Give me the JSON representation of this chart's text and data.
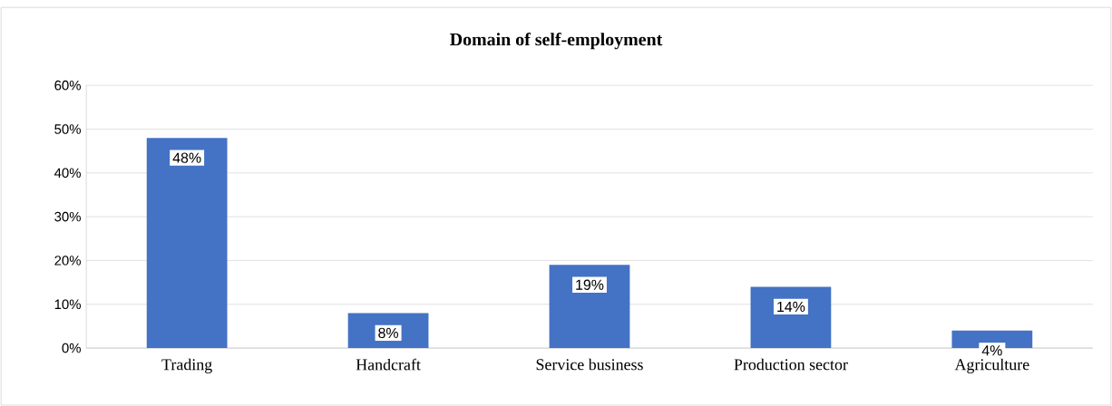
{
  "chart_data": {
    "type": "bar",
    "title": "Domain of self-employment",
    "categories": [
      "Trading",
      "Handcraft",
      "Service business",
      "Production sector",
      "Agriculture"
    ],
    "values": [
      48,
      8,
      19,
      14,
      4
    ],
    "value_labels": [
      "48%",
      "8%",
      "19%",
      "14%",
      "4%"
    ],
    "color": "#4472c4",
    "ylim": [
      0,
      60
    ],
    "yticks": [
      {
        "value": 0,
        "label": "0%"
      },
      {
        "value": 10,
        "label": "10%"
      },
      {
        "value": 20,
        "label": "20%"
      },
      {
        "value": 30,
        "label": "30%"
      },
      {
        "value": 40,
        "label": "40%"
      },
      {
        "value": 50,
        "label": "50%"
      },
      {
        "value": 60,
        "label": "60%"
      }
    ],
    "grid": "y"
  }
}
